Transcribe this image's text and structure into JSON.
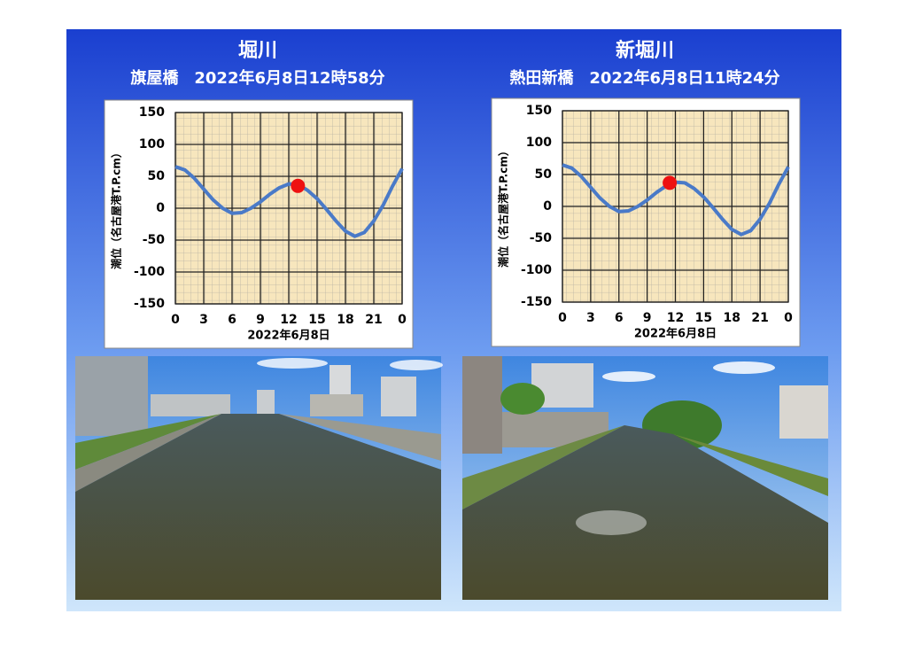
{
  "chart_data": [
    {
      "type": "line",
      "title": "堀川",
      "subtitle": "旗屋橋　2022年6月8日12時58分",
      "x_label": "2022年6月8日",
      "y_label": "潮位（名古屋港T.P.cm）",
      "x": [
        0,
        1,
        2,
        3,
        4,
        5,
        6,
        7,
        8,
        9,
        10,
        11,
        12,
        13,
        14,
        15,
        16,
        17,
        18,
        19,
        20,
        21,
        22,
        23,
        24
      ],
      "series": [
        {
          "color": "#4a7ac8",
          "values": [
            65,
            60,
            47,
            30,
            13,
            0,
            -8,
            -7,
            0,
            10,
            22,
            32,
            38,
            37,
            28,
            15,
            -2,
            -20,
            -36,
            -44,
            -38,
            -20,
            5,
            35,
            62
          ]
        }
      ],
      "marker": {
        "x": 12.97,
        "y": 35,
        "color": "#ee1111"
      },
      "xlim": [
        0,
        24
      ],
      "xticks": [
        0,
        3,
        6,
        9,
        12,
        15,
        18,
        21,
        {
          "value": 24,
          "label": "0"
        }
      ],
      "ylim": [
        -150,
        150
      ],
      "yticks": [
        -150,
        -100,
        -50,
        0,
        50,
        100,
        150
      ],
      "grid": true
    },
    {
      "type": "line",
      "title": "新堀川",
      "subtitle": "熱田新橋　2022年6月8日11時24分",
      "x_label": "2022年6月8日",
      "y_label": "潮位（名古屋港T.P.cm）",
      "x": [
        0,
        1,
        2,
        3,
        4,
        5,
        6,
        7,
        8,
        9,
        10,
        11,
        12,
        13,
        14,
        15,
        16,
        17,
        18,
        19,
        20,
        21,
        22,
        23,
        24
      ],
      "series": [
        {
          "color": "#4a7ac8",
          "values": [
            65,
            60,
            47,
            30,
            13,
            0,
            -8,
            -7,
            0,
            10,
            22,
            32,
            38,
            37,
            28,
            15,
            -2,
            -20,
            -36,
            -44,
            -38,
            -20,
            5,
            35,
            62
          ]
        }
      ],
      "marker": {
        "x": 11.4,
        "y": 37,
        "color": "#ee1111"
      },
      "xlim": [
        0,
        24
      ],
      "xticks": [
        0,
        3,
        6,
        9,
        12,
        15,
        18,
        21,
        {
          "value": 24,
          "label": "0"
        }
      ],
      "ylim": [
        -150,
        150
      ],
      "yticks": [
        -150,
        -100,
        -50,
        0,
        50,
        100,
        150
      ],
      "grid": true
    }
  ]
}
